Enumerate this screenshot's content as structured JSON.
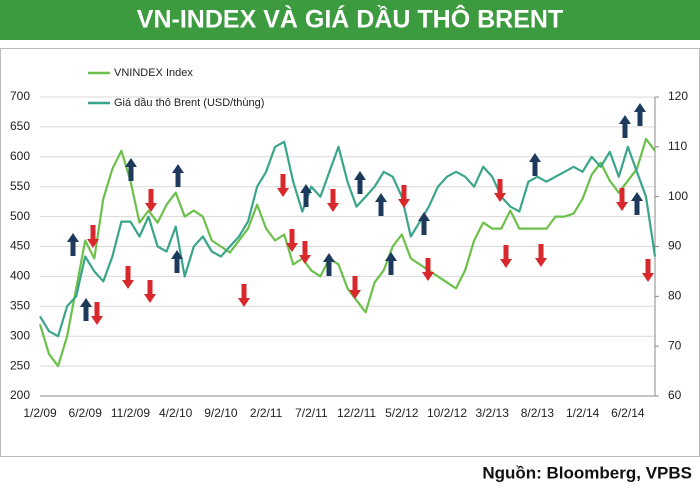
{
  "chart_data": {
    "type": "line",
    "title": "VN-INDEX VÀ GIÁ DẦU THÔ BRENT",
    "source": "Nguồn: Bloomberg, VPBS",
    "categories": [
      "1/2/09",
      null,
      null,
      null,
      null,
      "6/2/09",
      null,
      null,
      null,
      null,
      "11/2/09",
      null,
      null,
      null,
      null,
      "4/2/10",
      null,
      null,
      null,
      null,
      "9/2/10",
      null,
      null,
      null,
      null,
      "2/2/11",
      null,
      null,
      null,
      null,
      "7/2/11",
      null,
      null,
      null,
      null,
      "12/2/11",
      null,
      null,
      null,
      null,
      "5/2/12",
      null,
      null,
      null,
      null,
      "10/2/12",
      null,
      null,
      null,
      null,
      "3/2/13",
      null,
      null,
      null,
      null,
      "8/2/13",
      null,
      null,
      null,
      null,
      "1/2/14",
      null,
      null,
      null,
      null,
      "6/2/14",
      null,
      null,
      null
    ],
    "series": [
      {
        "name": "VNINDEX Index",
        "color": "#6cc04a",
        "values": [
          320,
          270,
          250,
          300,
          380,
          460,
          430,
          530,
          580,
          610,
          560,
          490,
          510,
          490,
          520,
          540,
          500,
          510,
          500,
          460,
          450,
          440,
          460,
          480,
          520,
          480,
          460,
          470,
          420,
          430,
          410,
          400,
          430,
          420,
          380,
          360,
          340,
          390,
          410,
          450,
          470,
          430,
          420,
          410,
          400,
          390,
          380,
          410,
          460,
          490,
          480,
          480,
          510,
          480,
          480,
          480,
          480,
          500,
          500,
          505,
          530,
          570,
          590,
          560,
          540,
          560,
          580,
          630,
          610
        ]
      },
      {
        "name": "Giá dầu thô Brent (USD/thùng)",
        "color": "#3aa58a",
        "axis": "y2",
        "values": [
          76,
          73,
          72,
          78,
          80,
          88,
          85,
          83,
          88,
          95,
          95,
          92,
          96,
          90,
          89,
          94,
          84,
          90,
          92,
          89,
          88,
          90,
          92,
          95,
          102,
          105,
          110,
          111,
          103,
          97,
          102,
          100,
          105,
          110,
          103,
          98,
          100,
          102,
          105,
          104,
          100,
          92,
          95,
          98,
          102,
          104,
          105,
          104,
          102,
          106,
          104,
          100,
          98,
          97,
          103,
          104,
          103,
          104,
          105,
          106,
          105,
          108,
          106,
          109,
          104,
          110,
          105,
          100,
          88
        ]
      }
    ],
    "ylim": [
      200,
      700
    ],
    "yticks": [
      200,
      250,
      300,
      350,
      400,
      450,
      500,
      550,
      600,
      650,
      700
    ],
    "y2lim": [
      60,
      120
    ],
    "y2ticks": [
      60,
      70,
      80,
      90,
      100,
      110,
      120
    ],
    "grid": true
  }
}
